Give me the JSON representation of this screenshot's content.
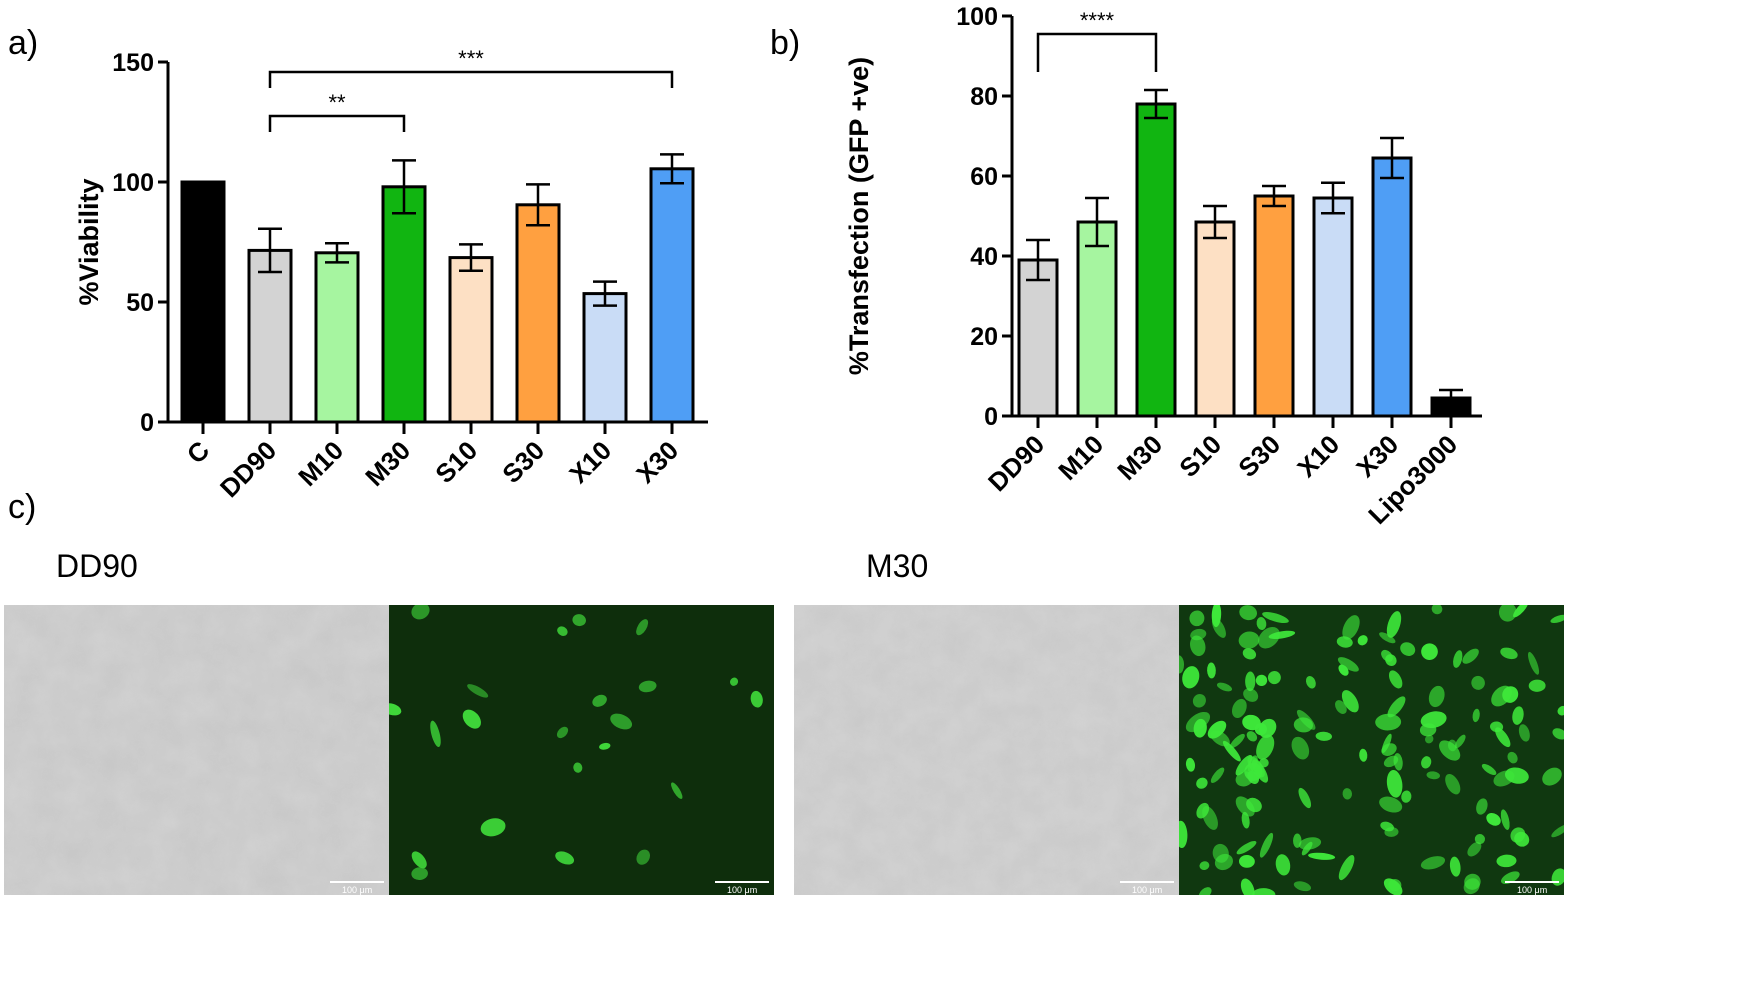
{
  "panels": {
    "a": "a)",
    "b": "b)",
    "c": "c)"
  },
  "chart_data": [
    {
      "type": "bar",
      "ylabel": "%Viability",
      "xlabel": "",
      "ylim": [
        0,
        150
      ],
      "yticks": [
        0,
        50,
        100,
        150
      ],
      "categories": [
        "C",
        "DD90",
        "M10",
        "M30",
        "S10",
        "S30",
        "X10",
        "X30"
      ],
      "values": [
        100,
        71.5,
        70.5,
        98,
        68.5,
        90.5,
        53.5,
        105.5
      ],
      "errors": [
        0,
        9,
        4,
        11,
        5.5,
        8.5,
        5,
        6
      ],
      "colors": [
        "#000000",
        "#d3d3d3",
        "#a6f5a0",
        "#11b511",
        "#fde0c4",
        "#ffa040",
        "#c9dcf6",
        "#4f9ef5"
      ],
      "significance": [
        {
          "from": "DD90",
          "to": "M30",
          "label": "**"
        },
        {
          "from": "DD90",
          "to": "X30",
          "label": "***"
        }
      ]
    },
    {
      "type": "bar",
      "ylabel": "%Transfection (GFP +ve)",
      "xlabel": "",
      "ylim": [
        0,
        100
      ],
      "yticks": [
        0,
        20,
        40,
        60,
        80,
        100
      ],
      "categories": [
        "DD90",
        "M10",
        "M30",
        "S10",
        "S30",
        "X10",
        "X30",
        "Lipo3000"
      ],
      "values": [
        39,
        48.5,
        78,
        48.5,
        55,
        54.5,
        64.5,
        4.5
      ],
      "errors": [
        5,
        6,
        3.5,
        4,
        2.5,
        3.8,
        5,
        2
      ],
      "colors": [
        "#d3d3d3",
        "#a6f5a0",
        "#11b511",
        "#fde0c4",
        "#ffa040",
        "#c9dcf6",
        "#4f9ef5",
        "#000000"
      ],
      "significance": [
        {
          "from": "DD90",
          "to": "M30",
          "label": "****"
        }
      ]
    }
  ],
  "images": {
    "left_caption": "DD90",
    "right_caption": "M30",
    "scalebar_label": "100 μm"
  }
}
